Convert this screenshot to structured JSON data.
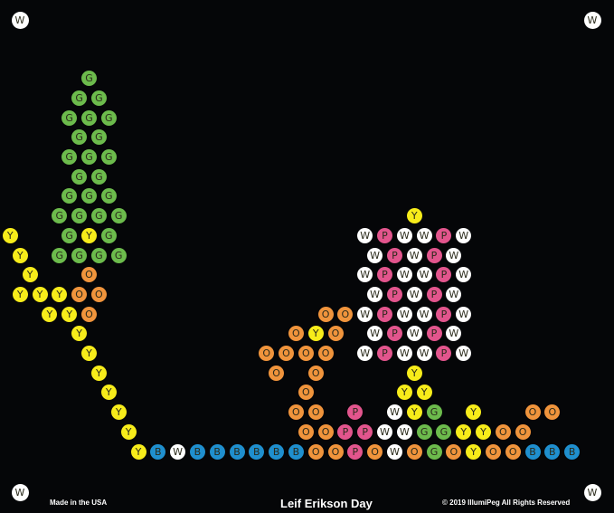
{
  "colors": {
    "Y": "#f7ec1a",
    "G": "#6cbb4c",
    "O": "#f0943c",
    "W": "#ffffff",
    "P": "#e2558d",
    "B": "#1f8fce"
  },
  "corner_pegs": [
    "W",
    "W",
    "W",
    "W"
  ],
  "pattern_rows": [
    "8G",
    "7G.G",
    "6G.G.G",
    "7G.G",
    "6G.G.G",
    "7G.G",
    "6G.G.G",
    "5G.G.G.G29Y",
    "Y5G.Y.G25W.P.W.W.P.W",
    ".Y3G.G.G.G25W.P.W.P.W",
    "2Y5O27W.P.W.W.P.W",
    ".Y.Y.Y.O.O27W.P.W.P.W",
    "4Y.Y.O23O.O.W.P.W.W.P.W",
    "7Y21O.Y.O3W.P.W.P.W",
    "8Y17O.O.O.O3W.P.W.W.P.W",
    "9Y17O3O9Y",
    "10Y19O9Y.Y",
    "11Y17O.O3P3W.Y.G3Y5O.O",
    "12Y17O.O.P.P.W.W.G.G.Y.Y.O.O",
    "13Y.B.W.B.B.B.B.B.B.O.O.P.O.W.O.G.O.Y.O.O.B.B.B"
  ],
  "footer": {
    "made": "Made in the USA",
    "title": "Leif Erikson Day",
    "copyright": "© 2019 IllumiPeg All Rights Reserved"
  }
}
